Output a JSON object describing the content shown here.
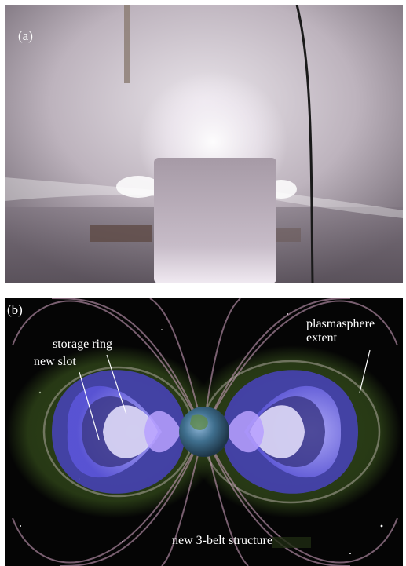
{
  "panels": {
    "a": {
      "label": "(a)"
    },
    "b": {
      "label": "(b)",
      "annotations": {
        "storage_ring": "storage ring",
        "new_slot": "new slot",
        "plasmasphere_extent": "plasmasphere\nextent",
        "belt_structure": "new 3-belt structure"
      }
    }
  },
  "colors": {
    "chamber": "#b9b0b8",
    "glow": "#ffffff",
    "space": "#050505",
    "belt": "#8a86ff",
    "plasmasphere": "#5f7a2b",
    "field_lines": "#c79bb7"
  }
}
